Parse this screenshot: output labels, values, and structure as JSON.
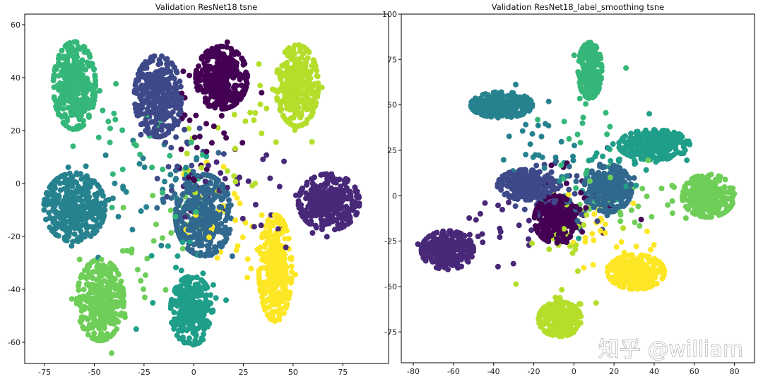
{
  "watermark": "知乎 @william",
  "chart_data": [
    {
      "type": "scatter",
      "title": "Validation ResNet18 tsne",
      "xlabel": "",
      "ylabel": "",
      "xlim": [
        -85,
        98
      ],
      "ylim": [
        -68,
        64
      ],
      "xticks": [
        -75,
        -50,
        -25,
        0,
        25,
        50,
        75
      ],
      "yticks": [
        -60,
        -40,
        -20,
        0,
        20,
        40,
        60
      ],
      "grid": false,
      "colormap": "viridis",
      "clusters": [
        {
          "label": 0,
          "color": "#440154",
          "center": [
            14,
            40
          ],
          "spread": [
            11,
            10
          ],
          "count": 340
        },
        {
          "label": 1,
          "color": "#482878",
          "center": [
            68,
            -7
          ],
          "spread": [
            13,
            9
          ],
          "count": 340
        },
        {
          "label": 2,
          "color": "#3e4989",
          "center": [
            -18,
            33
          ],
          "spread": [
            10,
            13
          ],
          "count": 320
        },
        {
          "label": 3,
          "color": "#31688e",
          "center": [
            5,
            -12
          ],
          "spread": [
            12,
            13
          ],
          "count": 340
        },
        {
          "label": 4,
          "color": "#26828e",
          "center": [
            -60,
            -9
          ],
          "spread": [
            13,
            11
          ],
          "count": 330
        },
        {
          "label": 5,
          "color": "#1f9e89",
          "center": [
            -1,
            -48
          ],
          "spread": [
            9,
            11
          ],
          "count": 270
        },
        {
          "label": 6,
          "color": "#35b779",
          "center": [
            -60,
            37
          ],
          "spread": [
            9,
            14
          ],
          "count": 320
        },
        {
          "label": 7,
          "color": "#6ece58",
          "center": [
            -47,
            -44
          ],
          "spread": [
            10,
            13
          ],
          "count": 320
        },
        {
          "label": 8,
          "color": "#b5de2b",
          "center": [
            52,
            37
          ],
          "spread": [
            9,
            13
          ],
          "count": 320
        },
        {
          "label": 9,
          "color": "#fde725",
          "center": [
            41,
            -32
          ],
          "spread": [
            7,
            17
          ],
          "count": 330
        }
      ]
    },
    {
      "type": "scatter",
      "title": "Validation ResNet18_label_smoothing tsne",
      "xlabel": "",
      "ylabel": "",
      "xlim": [
        -86,
        90
      ],
      "ylim": [
        -92,
        100
      ],
      "xticks": [
        -80,
        -60,
        -40,
        -20,
        0,
        20,
        40,
        60,
        80
      ],
      "yticks": [
        -75,
        -50,
        -25,
        0,
        25,
        50,
        75,
        100
      ],
      "grid": false,
      "colormap": "viridis",
      "clusters": [
        {
          "label": 0,
          "color": "#440154",
          "center": [
            -9,
            -13
          ],
          "spread": [
            9,
            11
          ],
          "count": 300
        },
        {
          "label": 1,
          "color": "#482878",
          "center": [
            -63,
            -30
          ],
          "spread": [
            11,
            9
          ],
          "count": 300
        },
        {
          "label": 2,
          "color": "#3e4989",
          "center": [
            -24,
            6
          ],
          "spread": [
            12,
            7
          ],
          "count": 300
        },
        {
          "label": 3,
          "color": "#31688e",
          "center": [
            17,
            4
          ],
          "spread": [
            10,
            11
          ],
          "count": 300
        },
        {
          "label": 4,
          "color": "#26828e",
          "center": [
            -36,
            50
          ],
          "spread": [
            13,
            6
          ],
          "count": 300
        },
        {
          "label": 5,
          "color": "#1f9e89",
          "center": [
            40,
            28
          ],
          "spread": [
            15,
            7
          ],
          "count": 290
        },
        {
          "label": 6,
          "color": "#35b779",
          "center": [
            8,
            69
          ],
          "spread": [
            5,
            13
          ],
          "count": 220
        },
        {
          "label": 7,
          "color": "#6ece58",
          "center": [
            67,
            0
          ],
          "spread": [
            11,
            10
          ],
          "count": 280
        },
        {
          "label": 8,
          "color": "#b5de2b",
          "center": [
            -7,
            -68
          ],
          "spread": [
            9,
            8
          ],
          "count": 290
        },
        {
          "label": 9,
          "color": "#fde725",
          "center": [
            31,
            -42
          ],
          "spread": [
            12,
            8
          ],
          "count": 290
        }
      ]
    }
  ]
}
